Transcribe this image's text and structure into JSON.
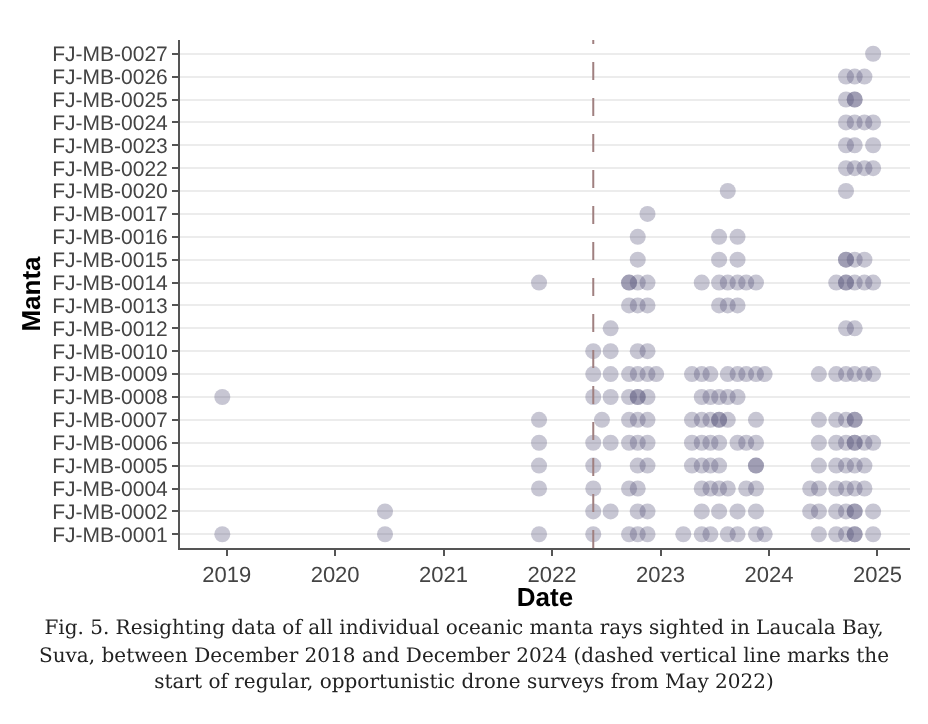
{
  "chart_data": {
    "type": "scatter",
    "orientation": "horizontal",
    "xlabel": "Date",
    "ylabel": "Manta",
    "categories": [
      "FJ-MB-0027",
      "FJ-MB-0026",
      "FJ-MB-0025",
      "FJ-MB-0024",
      "FJ-MB-0023",
      "FJ-MB-0022",
      "FJ-MB-0020",
      "FJ-MB-0017",
      "FJ-MB-0016",
      "FJ-MB-0015",
      "FJ-MB-0014",
      "FJ-MB-0013",
      "FJ-MB-0012",
      "FJ-MB-0010",
      "FJ-MB-0009",
      "FJ-MB-0008",
      "FJ-MB-0007",
      "FJ-MB-0006",
      "FJ-MB-0005",
      "FJ-MB-0004",
      "FJ-MB-0002",
      "FJ-MB-0001"
    ],
    "xlim": [
      2018.57,
      2025.3
    ],
    "xticks": [
      2019,
      2020,
      2021,
      2022,
      2023,
      2024,
      2025
    ],
    "grid": "y",
    "marker": "circle",
    "ref_lines": [
      {
        "axis": "x",
        "value": 2022.38,
        "color": "#a08080",
        "line_style": "dashed"
      }
    ],
    "series": [
      {
        "color": "#46416c",
        "x": [
          "FJ-MB-0027",
          "FJ-MB-0026",
          "FJ-MB-0026",
          "FJ-MB-0026",
          "FJ-MB-0025",
          "FJ-MB-0025",
          "FJ-MB-0025",
          "FJ-MB-0024",
          "FJ-MB-0024",
          "FJ-MB-0024",
          "FJ-MB-0024",
          "FJ-MB-0023",
          "FJ-MB-0023",
          "FJ-MB-0023",
          "FJ-MB-0022",
          "FJ-MB-0022",
          "FJ-MB-0022",
          "FJ-MB-0022",
          "FJ-MB-0020",
          "FJ-MB-0020",
          "FJ-MB-0017",
          "FJ-MB-0016",
          "FJ-MB-0016",
          "FJ-MB-0016",
          "FJ-MB-0015",
          "FJ-MB-0015",
          "FJ-MB-0015",
          "FJ-MB-0015",
          "FJ-MB-0015",
          "FJ-MB-0015",
          "FJ-MB-0015",
          "FJ-MB-0014",
          "FJ-MB-0014",
          "FJ-MB-0014",
          "FJ-MB-0014",
          "FJ-MB-0014",
          "FJ-MB-0014",
          "FJ-MB-0014",
          "FJ-MB-0014",
          "FJ-MB-0014",
          "FJ-MB-0014",
          "FJ-MB-0014",
          "FJ-MB-0014",
          "FJ-MB-0014",
          "FJ-MB-0014",
          "FJ-MB-0014",
          "FJ-MB-0014",
          "FJ-MB-0014",
          "FJ-MB-0013",
          "FJ-MB-0013",
          "FJ-MB-0013",
          "FJ-MB-0013",
          "FJ-MB-0013",
          "FJ-MB-0013",
          "FJ-MB-0012",
          "FJ-MB-0012",
          "FJ-MB-0012",
          "FJ-MB-0010",
          "FJ-MB-0010",
          "FJ-MB-0010",
          "FJ-MB-0010",
          "FJ-MB-0009",
          "FJ-MB-0009",
          "FJ-MB-0009",
          "FJ-MB-0009",
          "FJ-MB-0009",
          "FJ-MB-0009",
          "FJ-MB-0009",
          "FJ-MB-0009",
          "FJ-MB-0009",
          "FJ-MB-0009",
          "FJ-MB-0009",
          "FJ-MB-0009",
          "FJ-MB-0009",
          "FJ-MB-0009",
          "FJ-MB-0009",
          "FJ-MB-0009",
          "FJ-MB-0009",
          "FJ-MB-0009",
          "FJ-MB-0009",
          "FJ-MB-0009",
          "FJ-MB-0008",
          "FJ-MB-0008",
          "FJ-MB-0008",
          "FJ-MB-0008",
          "FJ-MB-0008",
          "FJ-MB-0008",
          "FJ-MB-0008",
          "FJ-MB-0008",
          "FJ-MB-0008",
          "FJ-MB-0008",
          "FJ-MB-0008",
          "FJ-MB-0008",
          "FJ-MB-0007",
          "FJ-MB-0007",
          "FJ-MB-0007",
          "FJ-MB-0007",
          "FJ-MB-0007",
          "FJ-MB-0007",
          "FJ-MB-0007",
          "FJ-MB-0007",
          "FJ-MB-0007",
          "FJ-MB-0007",
          "FJ-MB-0007",
          "FJ-MB-0007",
          "FJ-MB-0007",
          "FJ-MB-0007",
          "FJ-MB-0007",
          "FJ-MB-0007",
          "FJ-MB-0007",
          "FJ-MB-0006",
          "FJ-MB-0006",
          "FJ-MB-0006",
          "FJ-MB-0006",
          "FJ-MB-0006",
          "FJ-MB-0006",
          "FJ-MB-0006",
          "FJ-MB-0006",
          "FJ-MB-0006",
          "FJ-MB-0006",
          "FJ-MB-0006",
          "FJ-MB-0006",
          "FJ-MB-0006",
          "FJ-MB-0006",
          "FJ-MB-0006",
          "FJ-MB-0006",
          "FJ-MB-0006",
          "FJ-MB-0006",
          "FJ-MB-0006",
          "FJ-MB-0006",
          "FJ-MB-0005",
          "FJ-MB-0005",
          "FJ-MB-0005",
          "FJ-MB-0005",
          "FJ-MB-0005",
          "FJ-MB-0005",
          "FJ-MB-0005",
          "FJ-MB-0005",
          "FJ-MB-0005",
          "FJ-MB-0005",
          "FJ-MB-0005",
          "FJ-MB-0005",
          "FJ-MB-0005",
          "FJ-MB-0005",
          "FJ-MB-0005",
          "FJ-MB-0004",
          "FJ-MB-0004",
          "FJ-MB-0004",
          "FJ-MB-0004",
          "FJ-MB-0004",
          "FJ-MB-0004",
          "FJ-MB-0004",
          "FJ-MB-0004",
          "FJ-MB-0004",
          "FJ-MB-0004",
          "FJ-MB-0004",
          "FJ-MB-0004",
          "FJ-MB-0004",
          "FJ-MB-0004",
          "FJ-MB-0004",
          "FJ-MB-0004",
          "FJ-MB-0002",
          "FJ-MB-0002",
          "FJ-MB-0002",
          "FJ-MB-0002",
          "FJ-MB-0002",
          "FJ-MB-0002",
          "FJ-MB-0002",
          "FJ-MB-0002",
          "FJ-MB-0002",
          "FJ-MB-0002",
          "FJ-MB-0002",
          "FJ-MB-0002",
          "FJ-MB-0002",
          "FJ-MB-0002",
          "FJ-MB-0002",
          "FJ-MB-0002",
          "FJ-MB-0001",
          "FJ-MB-0001",
          "FJ-MB-0001",
          "FJ-MB-0001",
          "FJ-MB-0001",
          "FJ-MB-0001",
          "FJ-MB-0001",
          "FJ-MB-0001",
          "FJ-MB-0001",
          "FJ-MB-0001",
          "FJ-MB-0001",
          "FJ-MB-0001",
          "FJ-MB-0001",
          "FJ-MB-0001",
          "FJ-MB-0001",
          "FJ-MB-0001",
          "FJ-MB-0001",
          "FJ-MB-0001",
          "FJ-MB-0001",
          "FJ-MB-0001"
        ],
        "values": [
          2024.96,
          2024.71,
          2024.79,
          2024.88,
          2024.71,
          2024.79,
          2024.79,
          2024.71,
          2024.79,
          2024.88,
          2024.96,
          2024.71,
          2024.79,
          2024.96,
          2024.71,
          2024.79,
          2024.88,
          2024.96,
          2023.62,
          2024.71,
          2022.88,
          2022.79,
          2023.54,
          2023.71,
          2022.79,
          2023.54,
          2023.71,
          2024.71,
          2024.71,
          2024.79,
          2024.88,
          2021.88,
          2022.71,
          2022.71,
          2022.79,
          2022.88,
          2023.38,
          2023.54,
          2023.62,
          2023.71,
          2023.79,
          2023.88,
          2024.62,
          2024.71,
          2024.71,
          2024.79,
          2024.88,
          2024.96,
          2022.71,
          2022.79,
          2022.88,
          2023.54,
          2023.62,
          2023.71,
          2022.54,
          2024.71,
          2024.79,
          2022.38,
          2022.54,
          2022.79,
          2022.88,
          2022.38,
          2022.54,
          2022.71,
          2022.79,
          2022.88,
          2022.96,
          2023.29,
          2023.38,
          2023.46,
          2023.62,
          2023.71,
          2023.79,
          2023.88,
          2023.96,
          2024.46,
          2024.62,
          2024.71,
          2024.79,
          2024.88,
          2024.96,
          2018.96,
          2022.38,
          2022.54,
          2022.71,
          2022.79,
          2022.79,
          2022.88,
          2023.38,
          2023.46,
          2023.54,
          2023.62,
          2023.71,
          2021.88,
          2022.46,
          2022.71,
          2022.79,
          2022.88,
          2023.29,
          2023.38,
          2023.46,
          2023.54,
          2023.54,
          2023.62,
          2023.88,
          2024.46,
          2024.62,
          2024.71,
          2024.79,
          2024.79,
          2021.88,
          2022.38,
          2022.54,
          2022.71,
          2022.79,
          2022.88,
          2023.29,
          2023.38,
          2023.46,
          2023.54,
          2023.71,
          2023.79,
          2023.88,
          2024.46,
          2024.62,
          2024.71,
          2024.79,
          2024.79,
          2024.88,
          2024.96,
          2021.88,
          2022.38,
          2022.79,
          2022.88,
          2023.29,
          2023.38,
          2023.46,
          2023.54,
          2023.88,
          2023.88,
          2024.46,
          2024.62,
          2024.71,
          2024.79,
          2024.88,
          2021.88,
          2022.38,
          2022.71,
          2022.79,
          2023.38,
          2023.46,
          2023.54,
          2023.62,
          2023.79,
          2023.88,
          2024.38,
          2024.46,
          2024.62,
          2024.71,
          2024.79,
          2024.88,
          2020.46,
          2022.38,
          2022.54,
          2022.79,
          2022.88,
          2023.38,
          2023.54,
          2023.71,
          2023.88,
          2024.38,
          2024.46,
          2024.62,
          2024.71,
          2024.79,
          2024.79,
          2024.96,
          2018.96,
          2020.46,
          2021.88,
          2022.38,
          2022.71,
          2022.79,
          2022.88,
          2023.21,
          2023.38,
          2023.46,
          2023.62,
          2023.71,
          2023.88,
          2023.96,
          2024.46,
          2024.62,
          2024.71,
          2024.79,
          2024.79,
          2024.96
        ]
      }
    ],
    "annotations": [
      "Fig. 5. Resighting data of all individual oceanic manta rays sighted in Laucala Bay, Suva, between December 2018 and December 2024 (dashed vertical line marks the start of regular, opportunistic drone surveys from May 2022)"
    ]
  }
}
